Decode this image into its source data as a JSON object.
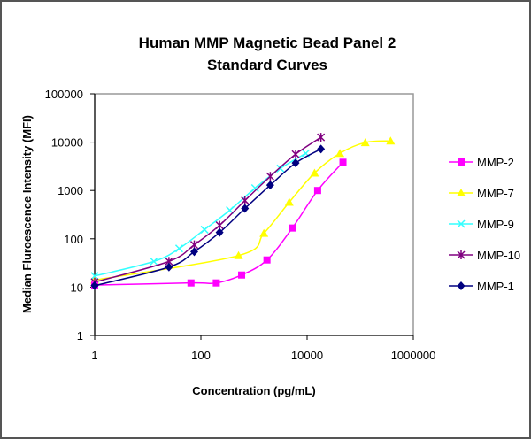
{
  "chart_data": {
    "type": "line",
    "title": [
      "Human MMP Magnetic Bead Panel 2",
      "Standard Curves"
    ],
    "xlabel": "Concentration (pg/mL)",
    "ylabel": "Median Fluroescence Intensity (MFI)",
    "xscale": "log",
    "yscale": "log",
    "xlim": [
      1,
      1000000
    ],
    "ylim": [
      1,
      100000
    ],
    "xticks": [
      "1",
      "100",
      "10000",
      "1000000"
    ],
    "yticks": [
      "1",
      "10",
      "100",
      "1000",
      "10000",
      "100000"
    ],
    "grid": false,
    "legend_position": "right",
    "series": [
      {
        "name": "MMP-2",
        "color": "#FF00FF",
        "marker": "square",
        "x": [
          1,
          65,
          195,
          585,
          1755,
          5265,
          15795,
          47385
        ],
        "y": [
          11,
          12.2,
          12.2,
          17.8,
          36.5,
          167,
          1000,
          3840
        ]
      },
      {
        "name": "MMP-7",
        "color": "#FFFF00",
        "marker": "triangle",
        "x": [
          1,
          512,
          1536,
          4608,
          13824,
          41472,
          124416,
          373248
        ],
        "y": [
          14,
          45,
          130,
          570,
          2300,
          5870,
          9800,
          10600
        ]
      },
      {
        "name": "MMP-9",
        "color": "#33FFFF",
        "marker": "x",
        "x": [
          1,
          13,
          39,
          117,
          350,
          1050,
          3150,
          9450
        ],
        "y": [
          17,
          34,
          63,
          155,
          390,
          1120,
          2860,
          5870
        ]
      },
      {
        "name": "MMP-10",
        "color": "#800080",
        "marker": "star",
        "x": [
          1,
          25,
          75,
          225,
          675,
          2025,
          6075,
          18225
        ],
        "y": [
          12.7,
          34,
          75,
          190,
          620,
          1960,
          5630,
          12600
        ]
      },
      {
        "name": "MMP-1",
        "color": "#000080",
        "marker": "diamond",
        "x": [
          1,
          25,
          75,
          225,
          675,
          2025,
          6075,
          18225
        ],
        "y": [
          10.7,
          26,
          54,
          135,
          425,
          1290,
          3700,
          7200
        ]
      }
    ]
  }
}
